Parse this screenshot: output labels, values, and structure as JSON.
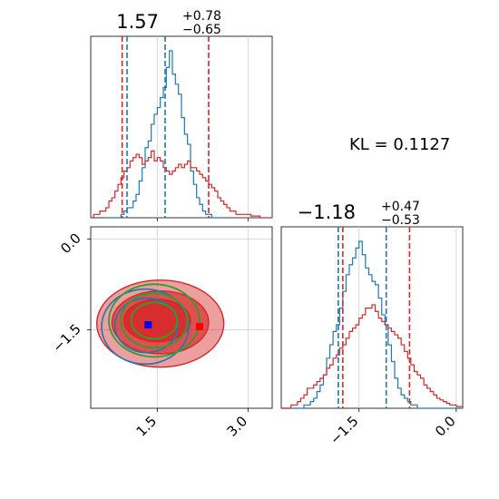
{
  "chart_data": {
    "type": "corner",
    "kl_text": "KL = 0.1127",
    "colors": {
      "blue": "#1f77b4",
      "red": "#d62728",
      "green": "#2ca02c",
      "grid": "#d0d0d0",
      "blue_marker": "#0000ff",
      "red_marker": "#ff0000"
    },
    "panels": {
      "top_hist": {
        "title_value": "1.57",
        "title_plus": "+0.78",
        "title_minus": "−0.65",
        "xlim": [
          0.4,
          3.4
        ],
        "xticks": [
          1.5,
          3.0
        ],
        "series": [
          {
            "color": "blue",
            "x0": 0.7,
            "dx": 0.05,
            "counts": [
              0,
              0,
              0,
              0,
              0.02,
              0.04,
              0.06,
              0.06,
              0.1,
              0.14,
              0.22,
              0.3,
              0.42,
              0.46,
              0.56,
              0.62,
              0.66,
              0.72,
              0.78,
              0.9,
              1.0,
              0.86,
              0.8,
              0.74,
              0.6,
              0.5,
              0.44,
              0.28,
              0.2,
              0.12,
              0.08,
              0.04,
              0.02,
              0.02,
              0,
              0,
              0,
              0
            ],
            "quantiles": [
              1.0,
              1.63
            ]
          },
          {
            "color": "red",
            "x0": 0.4,
            "dx": 0.05,
            "counts": [
              0,
              0.02,
              0.02,
              0.04,
              0.04,
              0.06,
              0.1,
              0.12,
              0.16,
              0.2,
              0.24,
              0.28,
              0.3,
              0.34,
              0.36,
              0.38,
              0.36,
              0.32,
              0.34,
              0.36,
              0.4,
              0.34,
              0.36,
              0.34,
              0.3,
              0.28,
              0.26,
              0.28,
              0.3,
              0.32,
              0.3,
              0.32,
              0.34,
              0.3,
              0.3,
              0.28,
              0.26,
              0.24,
              0.22,
              0.2,
              0.18,
              0.16,
              0.12,
              0.1,
              0.08,
              0.06,
              0.04,
              0.04,
              0.02,
              0.02,
              0.02,
              0.02,
              0.02,
              0.01,
              0.01,
              0.01,
              0.0,
              0.0,
              0.0,
              0.0
            ],
            "quantiles": [
              0.92,
              2.35
            ]
          }
        ]
      },
      "right_hist": {
        "title_value": "−1.18",
        "title_plus": "+0.47",
        "title_minus": "−0.53",
        "xlim": [
          -2.7,
          0.1
        ],
        "xticks": [
          -1.5,
          0.0
        ],
        "xtick_labels": [
          "−1.5",
          "0.0"
        ],
        "series": [
          {
            "color": "blue",
            "x0": -2.7,
            "dx": 0.05,
            "counts": [
              0,
              0,
              0,
              0,
              0,
              0,
              0,
              0.02,
              0.02,
              0.04,
              0.06,
              0.1,
              0.14,
              0.2,
              0.3,
              0.38,
              0.46,
              0.5,
              0.6,
              0.7,
              0.8,
              0.86,
              0.9,
              0.96,
              1.0,
              0.92,
              0.84,
              0.8,
              0.76,
              0.74,
              0.66,
              0.56,
              0.5,
              0.38,
              0.28,
              0.18,
              0.12,
              0.08,
              0.06,
              0.04,
              0.02,
              0.02,
              0,
              0,
              0,
              0,
              0,
              0,
              0,
              0,
              0,
              0,
              0,
              0,
              0,
              0
            ],
            "quantiles": [
              -1.82,
              -1.08
            ]
          },
          {
            "color": "red",
            "x0": -2.7,
            "dx": 0.05,
            "counts": [
              0,
              0,
              0,
              0.02,
              0.02,
              0.04,
              0.06,
              0.08,
              0.12,
              0.12,
              0.14,
              0.16,
              0.18,
              0.2,
              0.24,
              0.26,
              0.3,
              0.32,
              0.36,
              0.38,
              0.42,
              0.46,
              0.48,
              0.5,
              0.54,
              0.56,
              0.6,
              0.6,
              0.62,
              0.58,
              0.54,
              0.52,
              0.5,
              0.48,
              0.46,
              0.44,
              0.42,
              0.38,
              0.34,
              0.3,
              0.26,
              0.22,
              0.2,
              0.18,
              0.14,
              0.12,
              0.1,
              0.08,
              0.06,
              0.05,
              0.04,
              0.03,
              0.02,
              0.02,
              0.01,
              0.01
            ],
            "quantiles": [
              -1.75,
              -0.72
            ]
          }
        ]
      },
      "scatter_2d": {
        "xlim": [
          0.4,
          3.4
        ],
        "ylim": [
          -2.8,
          0.2
        ],
        "xticks": [
          1.5,
          3.0
        ],
        "yticks": [
          0.0,
          -1.5
        ],
        "ytick_labels": [
          "0.0",
          "−1.5"
        ],
        "blue_marker": [
          1.35,
          -1.42
        ],
        "red_marker": [
          2.2,
          -1.45
        ],
        "red_levels": [
          {
            "center": [
              1.55,
              -1.4
            ],
            "rx": 1.05,
            "ry": 0.72,
            "alpha": 0.45
          },
          {
            "center": [
              1.55,
              -1.38
            ],
            "rx": 0.8,
            "ry": 0.52,
            "alpha": 0.65
          },
          {
            "center": [
              1.5,
              -1.35
            ],
            "rx": 0.55,
            "ry": 0.35,
            "alpha": 0.85
          }
        ],
        "blue_levels": [
          {
            "center": [
              1.3,
              -1.45
            ],
            "rx": 0.72,
            "ry": 0.62
          },
          {
            "center": [
              1.32,
              -1.43
            ],
            "rx": 0.52,
            "ry": 0.45
          }
        ],
        "green_levels": [
          {
            "center": [
              1.45,
              -1.35
            ],
            "rx": 0.75,
            "ry": 0.6
          },
          {
            "center": [
              1.45,
              -1.35
            ],
            "rx": 0.55,
            "ry": 0.45
          },
          {
            "center": [
              1.45,
              -1.35
            ],
            "rx": 0.38,
            "ry": 0.3
          }
        ]
      }
    }
  }
}
